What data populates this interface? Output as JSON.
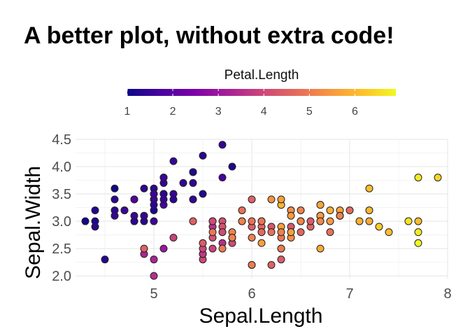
{
  "chart_data": {
    "type": "scatter",
    "title": "A better plot, without extra code!",
    "xlabel": "Sepal.Length",
    "ylabel": "Sepal.Width",
    "xlim": [
      4.2,
      8.0
    ],
    "ylim": [
      1.95,
      4.5
    ],
    "x_ticks": [
      5,
      6,
      7,
      8
    ],
    "y_ticks": [
      2.0,
      2.5,
      3.0,
      3.5,
      4.0,
      4.5
    ],
    "x_tick_labels": [
      "5",
      "6",
      "7",
      "8"
    ],
    "y_tick_labels": [
      "2.0",
      "2.5",
      "3.0",
      "3.5",
      "4.0",
      "4.5"
    ],
    "grid": true,
    "legend": {
      "title": "Petal.Length",
      "position": "top",
      "type": "colorbar",
      "colormap": "plasma",
      "range": [
        1.0,
        6.9
      ],
      "ticks": [
        1,
        2,
        3,
        4,
        5,
        6
      ],
      "tick_labels": [
        "1",
        "2",
        "3",
        "4",
        "5",
        "6"
      ]
    },
    "points": [
      {
        "x": 5.1,
        "y": 3.5,
        "c": 1.4
      },
      {
        "x": 4.9,
        "y": 3.0,
        "c": 1.4
      },
      {
        "x": 4.7,
        "y": 3.2,
        "c": 1.3
      },
      {
        "x": 4.6,
        "y": 3.1,
        "c": 1.5
      },
      {
        "x": 5.0,
        "y": 3.6,
        "c": 1.4
      },
      {
        "x": 5.4,
        "y": 3.9,
        "c": 1.7
      },
      {
        "x": 4.6,
        "y": 3.4,
        "c": 1.4
      },
      {
        "x": 5.0,
        "y": 3.4,
        "c": 1.5
      },
      {
        "x": 4.4,
        "y": 2.9,
        "c": 1.4
      },
      {
        "x": 4.9,
        "y": 3.1,
        "c": 1.5
      },
      {
        "x": 5.4,
        "y": 3.7,
        "c": 1.5
      },
      {
        "x": 4.8,
        "y": 3.4,
        "c": 1.6
      },
      {
        "x": 4.8,
        "y": 3.0,
        "c": 1.4
      },
      {
        "x": 4.3,
        "y": 3.0,
        "c": 1.1
      },
      {
        "x": 5.8,
        "y": 4.0,
        "c": 1.2
      },
      {
        "x": 5.7,
        "y": 4.4,
        "c": 1.5
      },
      {
        "x": 5.4,
        "y": 3.9,
        "c": 1.3
      },
      {
        "x": 5.1,
        "y": 3.5,
        "c": 1.4
      },
      {
        "x": 5.7,
        "y": 3.8,
        "c": 1.7
      },
      {
        "x": 5.1,
        "y": 3.8,
        "c": 1.5
      },
      {
        "x": 5.4,
        "y": 3.4,
        "c": 1.7
      },
      {
        "x": 5.1,
        "y": 3.7,
        "c": 1.5
      },
      {
        "x": 4.6,
        "y": 3.6,
        "c": 1.0
      },
      {
        "x": 5.1,
        "y": 3.3,
        "c": 1.7
      },
      {
        "x": 4.8,
        "y": 3.4,
        "c": 1.9
      },
      {
        "x": 5.0,
        "y": 3.0,
        "c": 1.6
      },
      {
        "x": 5.0,
        "y": 3.4,
        "c": 1.6
      },
      {
        "x": 5.2,
        "y": 3.5,
        "c": 1.5
      },
      {
        "x": 5.2,
        "y": 3.4,
        "c": 1.4
      },
      {
        "x": 4.7,
        "y": 3.2,
        "c": 1.6
      },
      {
        "x": 4.8,
        "y": 3.1,
        "c": 1.6
      },
      {
        "x": 5.4,
        "y": 3.4,
        "c": 1.5
      },
      {
        "x": 5.2,
        "y": 4.1,
        "c": 1.5
      },
      {
        "x": 5.5,
        "y": 4.2,
        "c": 1.4
      },
      {
        "x": 4.9,
        "y": 3.1,
        "c": 1.5
      },
      {
        "x": 5.0,
        "y": 3.2,
        "c": 1.2
      },
      {
        "x": 5.5,
        "y": 3.5,
        "c": 1.3
      },
      {
        "x": 4.9,
        "y": 3.6,
        "c": 1.4
      },
      {
        "x": 4.4,
        "y": 3.0,
        "c": 1.3
      },
      {
        "x": 5.1,
        "y": 3.4,
        "c": 1.5
      },
      {
        "x": 5.0,
        "y": 3.5,
        "c": 1.3
      },
      {
        "x": 4.5,
        "y": 2.3,
        "c": 1.3
      },
      {
        "x": 4.4,
        "y": 3.2,
        "c": 1.3
      },
      {
        "x": 5.0,
        "y": 3.5,
        "c": 1.6
      },
      {
        "x": 5.1,
        "y": 3.8,
        "c": 1.9
      },
      {
        "x": 4.8,
        "y": 3.0,
        "c": 1.4
      },
      {
        "x": 5.1,
        "y": 3.8,
        "c": 1.6
      },
      {
        "x": 4.6,
        "y": 3.2,
        "c": 1.4
      },
      {
        "x": 5.3,
        "y": 3.7,
        "c": 1.5
      },
      {
        "x": 5.0,
        "y": 3.3,
        "c": 1.4
      },
      {
        "x": 7.0,
        "y": 3.2,
        "c": 4.7
      },
      {
        "x": 6.4,
        "y": 3.2,
        "c": 4.5
      },
      {
        "x": 6.9,
        "y": 3.1,
        "c": 4.9
      },
      {
        "x": 5.5,
        "y": 2.3,
        "c": 4.0
      },
      {
        "x": 6.5,
        "y": 2.8,
        "c": 4.6
      },
      {
        "x": 5.7,
        "y": 2.8,
        "c": 4.5
      },
      {
        "x": 6.3,
        "y": 3.3,
        "c": 4.7
      },
      {
        "x": 4.9,
        "y": 2.4,
        "c": 3.3
      },
      {
        "x": 6.6,
        "y": 2.9,
        "c": 4.6
      },
      {
        "x": 5.2,
        "y": 2.7,
        "c": 3.9
      },
      {
        "x": 5.0,
        "y": 2.0,
        "c": 3.5
      },
      {
        "x": 5.9,
        "y": 3.0,
        "c": 4.2
      },
      {
        "x": 6.0,
        "y": 2.2,
        "c": 4.0
      },
      {
        "x": 6.1,
        "y": 2.9,
        "c": 4.7
      },
      {
        "x": 5.6,
        "y": 2.9,
        "c": 3.6
      },
      {
        "x": 6.7,
        "y": 3.1,
        "c": 4.4
      },
      {
        "x": 5.6,
        "y": 3.0,
        "c": 4.5
      },
      {
        "x": 5.8,
        "y": 2.7,
        "c": 4.1
      },
      {
        "x": 6.2,
        "y": 2.2,
        "c": 4.5
      },
      {
        "x": 5.6,
        "y": 2.5,
        "c": 3.9
      },
      {
        "x": 5.9,
        "y": 3.2,
        "c": 4.8
      },
      {
        "x": 6.1,
        "y": 2.8,
        "c": 4.0
      },
      {
        "x": 6.3,
        "y": 2.5,
        "c": 4.9
      },
      {
        "x": 6.1,
        "y": 2.8,
        "c": 4.7
      },
      {
        "x": 6.4,
        "y": 2.9,
        "c": 4.3
      },
      {
        "x": 6.6,
        "y": 3.0,
        "c": 4.4
      },
      {
        "x": 6.8,
        "y": 2.8,
        "c": 4.8
      },
      {
        "x": 6.7,
        "y": 3.0,
        "c": 5.0
      },
      {
        "x": 6.0,
        "y": 2.9,
        "c": 4.5
      },
      {
        "x": 5.7,
        "y": 2.6,
        "c": 3.5
      },
      {
        "x": 5.5,
        "y": 2.4,
        "c": 3.8
      },
      {
        "x": 5.5,
        "y": 2.4,
        "c": 3.7
      },
      {
        "x": 5.8,
        "y": 2.7,
        "c": 3.9
      },
      {
        "x": 6.0,
        "y": 2.7,
        "c": 5.1
      },
      {
        "x": 5.4,
        "y": 3.0,
        "c": 4.5
      },
      {
        "x": 6.0,
        "y": 3.4,
        "c": 4.5
      },
      {
        "x": 6.7,
        "y": 3.1,
        "c": 4.7
      },
      {
        "x": 6.3,
        "y": 2.3,
        "c": 4.4
      },
      {
        "x": 5.6,
        "y": 3.0,
        "c": 4.1
      },
      {
        "x": 5.5,
        "y": 2.5,
        "c": 4.0
      },
      {
        "x": 5.5,
        "y": 2.6,
        "c": 4.4
      },
      {
        "x": 6.1,
        "y": 3.0,
        "c": 4.6
      },
      {
        "x": 5.8,
        "y": 2.6,
        "c": 4.0
      },
      {
        "x": 5.0,
        "y": 2.3,
        "c": 3.3
      },
      {
        "x": 5.6,
        "y": 2.7,
        "c": 4.2
      },
      {
        "x": 5.7,
        "y": 3.0,
        "c": 4.2
      },
      {
        "x": 5.7,
        "y": 2.9,
        "c": 4.2
      },
      {
        "x": 6.2,
        "y": 2.9,
        "c": 4.3
      },
      {
        "x": 5.1,
        "y": 2.5,
        "c": 3.0
      },
      {
        "x": 5.7,
        "y": 2.8,
        "c": 4.1
      },
      {
        "x": 6.3,
        "y": 3.3,
        "c": 6.0
      },
      {
        "x": 5.8,
        "y": 2.7,
        "c": 5.1
      },
      {
        "x": 7.1,
        "y": 3.0,
        "c": 5.9
      },
      {
        "x": 6.3,
        "y": 2.9,
        "c": 5.6
      },
      {
        "x": 6.5,
        "y": 3.0,
        "c": 5.8
      },
      {
        "x": 7.6,
        "y": 3.0,
        "c": 6.6
      },
      {
        "x": 4.9,
        "y": 2.5,
        "c": 4.5
      },
      {
        "x": 7.3,
        "y": 2.9,
        "c": 6.3
      },
      {
        "x": 6.7,
        "y": 2.5,
        "c": 5.8
      },
      {
        "x": 7.2,
        "y": 3.6,
        "c": 6.1
      },
      {
        "x": 6.5,
        "y": 3.2,
        "c": 5.1
      },
      {
        "x": 6.4,
        "y": 2.7,
        "c": 5.3
      },
      {
        "x": 6.8,
        "y": 3.0,
        "c": 5.5
      },
      {
        "x": 5.7,
        "y": 2.5,
        "c": 5.0
      },
      {
        "x": 5.8,
        "y": 2.8,
        "c": 5.1
      },
      {
        "x": 6.4,
        "y": 3.2,
        "c": 5.3
      },
      {
        "x": 6.5,
        "y": 3.0,
        "c": 5.5
      },
      {
        "x": 7.7,
        "y": 3.8,
        "c": 6.7
      },
      {
        "x": 7.7,
        "y": 2.6,
        "c": 6.9
      },
      {
        "x": 6.0,
        "y": 2.2,
        "c": 5.0
      },
      {
        "x": 6.9,
        "y": 3.2,
        "c": 5.7
      },
      {
        "x": 5.6,
        "y": 2.8,
        "c": 4.9
      },
      {
        "x": 7.7,
        "y": 2.8,
        "c": 6.7
      },
      {
        "x": 6.3,
        "y": 2.7,
        "c": 4.9
      },
      {
        "x": 6.7,
        "y": 3.3,
        "c": 5.7
      },
      {
        "x": 7.2,
        "y": 3.2,
        "c": 6.0
      },
      {
        "x": 6.2,
        "y": 2.8,
        "c": 4.8
      },
      {
        "x": 6.1,
        "y": 3.0,
        "c": 4.9
      },
      {
        "x": 6.4,
        "y": 2.8,
        "c": 5.6
      },
      {
        "x": 7.2,
        "y": 3.0,
        "c": 5.8
      },
      {
        "x": 7.4,
        "y": 2.8,
        "c": 6.1
      },
      {
        "x": 7.9,
        "y": 3.8,
        "c": 6.4
      },
      {
        "x": 6.4,
        "y": 2.8,
        "c": 5.6
      },
      {
        "x": 6.3,
        "y": 2.8,
        "c": 5.1
      },
      {
        "x": 6.1,
        "y": 2.6,
        "c": 5.6
      },
      {
        "x": 7.7,
        "y": 3.0,
        "c": 6.1
      },
      {
        "x": 6.3,
        "y": 3.4,
        "c": 5.6
      },
      {
        "x": 6.4,
        "y": 3.1,
        "c": 5.5
      },
      {
        "x": 6.0,
        "y": 3.0,
        "c": 4.8
      },
      {
        "x": 6.9,
        "y": 3.1,
        "c": 5.4
      },
      {
        "x": 6.7,
        "y": 3.1,
        "c": 5.6
      },
      {
        "x": 6.9,
        "y": 3.1,
        "c": 5.1
      },
      {
        "x": 5.8,
        "y": 2.7,
        "c": 5.1
      },
      {
        "x": 6.8,
        "y": 3.2,
        "c": 5.9
      },
      {
        "x": 6.7,
        "y": 3.3,
        "c": 5.7
      },
      {
        "x": 6.7,
        "y": 3.0,
        "c": 5.2
      },
      {
        "x": 6.3,
        "y": 2.5,
        "c": 5.0
      },
      {
        "x": 6.5,
        "y": 3.0,
        "c": 5.2
      },
      {
        "x": 6.2,
        "y": 3.4,
        "c": 5.4
      },
      {
        "x": 5.9,
        "y": 3.0,
        "c": 5.1
      }
    ]
  }
}
